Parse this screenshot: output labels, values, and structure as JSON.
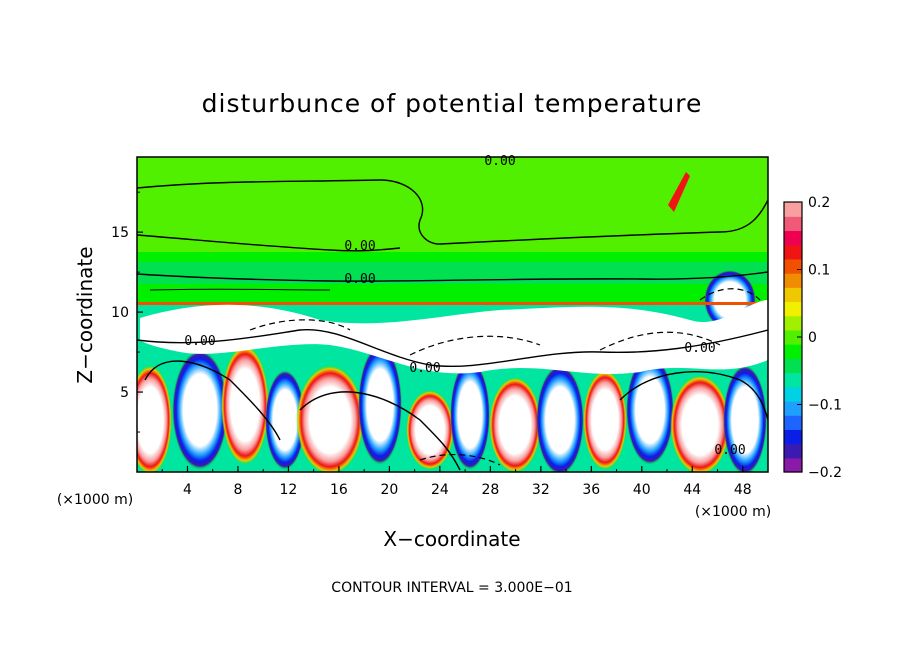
{
  "chart_data": {
    "type": "heatmap",
    "title": "disturbunce of potential temperature",
    "xlabel": "X−coordinate",
    "ylabel": "Z−coordinate",
    "x_units": "(×1000 m)",
    "z_units": "(×1000 m)",
    "x_ticks": [
      "4",
      "8",
      "12",
      "16",
      "20",
      "24",
      "28",
      "32",
      "36",
      "40",
      "44",
      "48"
    ],
    "z_ticks": [
      "5",
      "10",
      "15"
    ],
    "xlim": [
      0,
      50
    ],
    "zlim": [
      0,
      19.7
    ],
    "colorbar": {
      "range": [
        -0.2,
        0.2
      ],
      "ticks": [
        "0.2",
        "0.1",
        "0",
        "−0.1",
        "−0.2"
      ],
      "colors": [
        "#8a1aa8",
        "#3a1ab0",
        "#0a1ee8",
        "#1e64ff",
        "#1ea0ff",
        "#00d2e6",
        "#00e6a0",
        "#00e050",
        "#00f000",
        "#50f000",
        "#a0f000",
        "#f0f000",
        "#f0c800",
        "#f08c00",
        "#f05000",
        "#f01414",
        "#f00050",
        "#f05a78",
        "#f8a0a0"
      ]
    },
    "contour_labels": [
      "0.00",
      "0.00",
      "0.00",
      "0.00",
      "0.00",
      "0.00",
      "0.00"
    ],
    "annotation": "CONTOUR INTERVAL = 3.000E−01"
  }
}
